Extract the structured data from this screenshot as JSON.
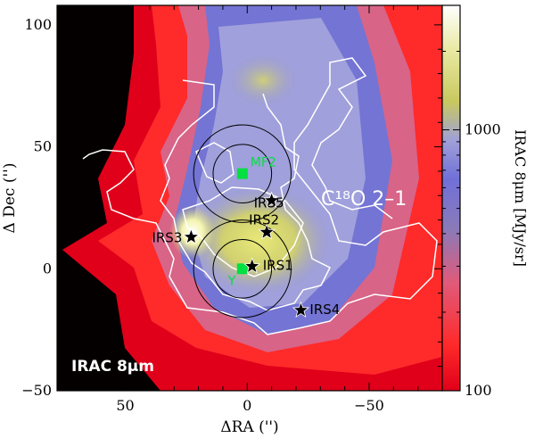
{
  "chart_data": {
    "type": "heatmap",
    "image_label": "IRAC 8μm",
    "line_label": "C¹⁸O 2–1",
    "xlabel": "ΔRA ('')",
    "ylabel": "Δ Dec ('')",
    "xlim": [
      78,
      -80
    ],
    "ylim": [
      -50,
      108
    ],
    "xticks": [
      50,
      0,
      -50
    ],
    "yticks": [
      -50,
      0,
      50,
      100
    ],
    "colorbar": {
      "label": "IRAC 8μm [MJy/sr]",
      "range": [
        100,
        3000
      ],
      "scale": "log",
      "ticks": [
        100,
        1000
      ],
      "colors": [
        "#e0001a",
        "#ff2a2a",
        "#e05a7a",
        "#8a7ab8",
        "#7070d8",
        "#9a9ae0",
        "#c0c08a",
        "#d8d860",
        "#f2f2cc",
        "#ffffff"
      ]
    },
    "sources": [
      {
        "name": "IRS1",
        "x": -2,
        "y": 1
      },
      {
        "name": "IRS2",
        "x": -8,
        "y": 15
      },
      {
        "name": "IRS3",
        "x": 23,
        "y": 13
      },
      {
        "name": "IRS4",
        "x": -22,
        "y": -17
      },
      {
        "name": "IRS5",
        "x": -10,
        "y": 28
      }
    ],
    "markers": [
      {
        "name": "MF2",
        "x": 2,
        "y": 39
      },
      {
        "name": "Y",
        "x": 2,
        "y": 0
      }
    ],
    "circles": [
      {
        "x": 2,
        "y": 39,
        "radii": [
          12,
          20
        ]
      },
      {
        "x": 2,
        "y": 0,
        "radii": [
          12,
          20
        ]
      }
    ],
    "colors": {
      "source": "#000000",
      "marker": "#00e040",
      "contour": "#ffffff",
      "circle": "#000000"
    }
  }
}
